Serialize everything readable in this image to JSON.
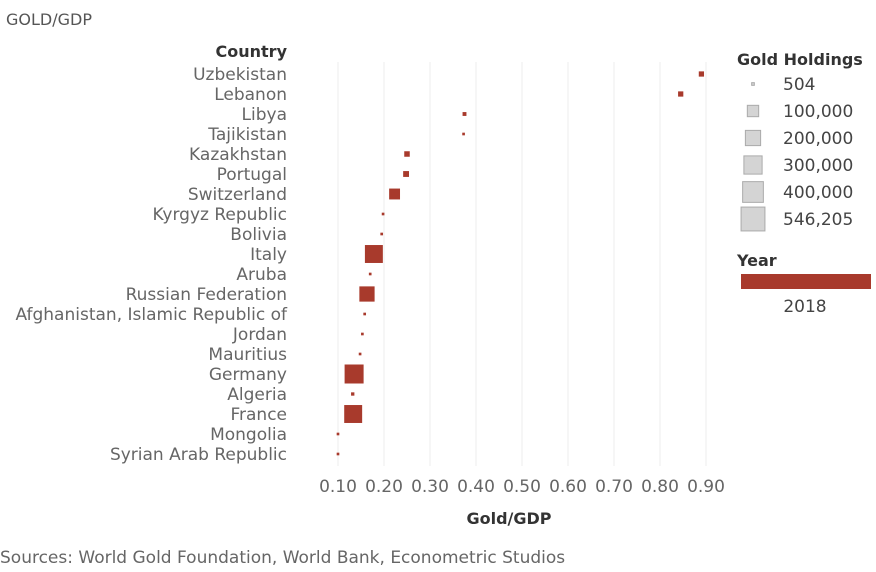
{
  "title": "GOLD/GDP",
  "source": "Sources: World Gold Foundation, World Bank, Econometric Studios",
  "colors": {
    "mark": "#a83a2c",
    "grid": "#ececec",
    "size_legend": "#d4d4d4"
  },
  "chart_data": {
    "type": "scatter",
    "row_header": "Country",
    "xlabel": "Gold/GDP",
    "xlim": [
      0,
      0.95
    ],
    "x_ticks": [
      "0.10",
      "0.20",
      "0.30",
      "0.40",
      "0.50",
      "0.60",
      "0.70",
      "0.80",
      "0.90"
    ],
    "x_tick_values": [
      0.1,
      0.2,
      0.3,
      0.4,
      0.5,
      0.6,
      0.7,
      0.8,
      0.9
    ],
    "size_legend": {
      "title": "Gold Holdings",
      "entries": [
        "504",
        "100,000",
        "200,000",
        "300,000",
        "400,000",
        "546,205"
      ],
      "entry_values": [
        504,
        100000,
        200000,
        300000,
        400000,
        546205
      ]
    },
    "color_legend": {
      "title": "Year",
      "entries": [
        "2018"
      ]
    },
    "points": [
      {
        "country": "Uzbekistan",
        "x": 0.89,
        "holdings": 12000
      },
      {
        "country": "Lebanon",
        "x": 0.845,
        "holdings": 12000
      },
      {
        "country": "Libya",
        "x": 0.375,
        "holdings": 4000
      },
      {
        "country": "Tajikistan",
        "x": 0.373,
        "holdings": 504
      },
      {
        "country": "Kazakhstan",
        "x": 0.25,
        "holdings": 14000
      },
      {
        "country": "Portugal",
        "x": 0.248,
        "holdings": 17000
      },
      {
        "country": "Switzerland",
        "x": 0.223,
        "holdings": 90000
      },
      {
        "country": "Kyrgyz Republic",
        "x": 0.198,
        "holdings": 504
      },
      {
        "country": "Bolivia",
        "x": 0.195,
        "holdings": 504
      },
      {
        "country": "Italy",
        "x": 0.178,
        "holdings": 290000
      },
      {
        "country": "Aruba",
        "x": 0.17,
        "holdings": 504
      },
      {
        "country": "Russian Federation",
        "x": 0.163,
        "holdings": 200000
      },
      {
        "country": "Afghanistan, Islamic Republic of",
        "x": 0.158,
        "holdings": 504
      },
      {
        "country": "Jordan",
        "x": 0.153,
        "holdings": 504
      },
      {
        "country": "Mauritius",
        "x": 0.148,
        "holdings": 504
      },
      {
        "country": "Germany",
        "x": 0.135,
        "holdings": 330000
      },
      {
        "country": "Algeria",
        "x": 0.132,
        "holdings": 2000
      },
      {
        "country": "France",
        "x": 0.133,
        "holdings": 290000
      },
      {
        "country": "Mongolia",
        "x": 0.1,
        "holdings": 504
      },
      {
        "country": "Syrian Arab Republic",
        "x": 0.1,
        "holdings": 504
      }
    ]
  }
}
